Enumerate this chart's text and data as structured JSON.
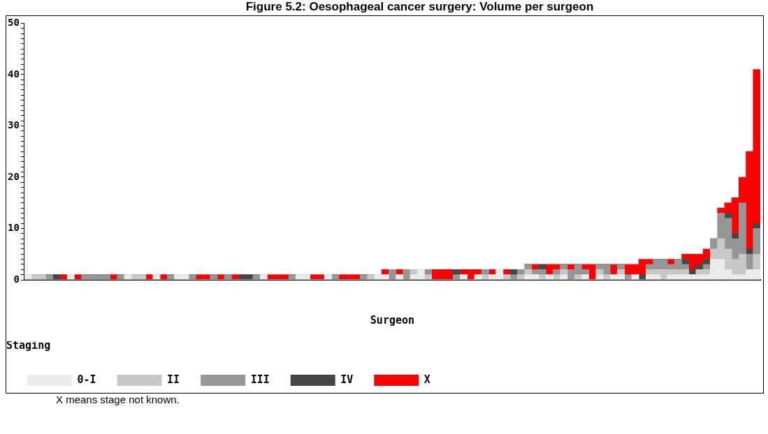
{
  "chart_data": {
    "type": "bar",
    "stacked": true,
    "title": "Figure 5.2: Oesophageal cancer surgery: Volume per surgeon",
    "xlabel": "Surgeon",
    "legend_title": "Staging",
    "legend": "bottom",
    "grid": false,
    "tick_labels": "y",
    "annotations": [
      "X means stage not known."
    ],
    "ylim": [
      0,
      50
    ],
    "yticks": [
      0,
      {
        "value": 1,
        "label": null
      },
      {
        "value": 2,
        "label": null
      },
      {
        "value": 3,
        "label": null
      },
      {
        "value": 4,
        "label": null
      },
      {
        "value": 5,
        "label": null
      },
      {
        "value": 6,
        "label": null
      },
      {
        "value": 7,
        "label": null
      },
      {
        "value": 8,
        "label": null
      },
      {
        "value": 9,
        "label": null
      },
      10,
      {
        "value": 11,
        "label": null
      },
      {
        "value": 12,
        "label": null
      },
      {
        "value": 13,
        "label": null
      },
      {
        "value": 14,
        "label": null
      },
      {
        "value": 15,
        "label": null
      },
      {
        "value": 16,
        "label": null
      },
      {
        "value": 17,
        "label": null
      },
      {
        "value": 18,
        "label": null
      },
      {
        "value": 19,
        "label": null
      },
      20,
      {
        "value": 21,
        "label": null
      },
      {
        "value": 22,
        "label": null
      },
      {
        "value": 23,
        "label": null
      },
      {
        "value": 24,
        "label": null
      },
      {
        "value": 25,
        "label": null
      },
      {
        "value": 26,
        "label": null
      },
      {
        "value": 27,
        "label": null
      },
      {
        "value": 28,
        "label": null
      },
      {
        "value": 29,
        "label": null
      },
      30,
      {
        "value": 31,
        "label": null
      },
      {
        "value": 32,
        "label": null
      },
      {
        "value": 33,
        "label": null
      },
      {
        "value": 34,
        "label": null
      },
      {
        "value": 35,
        "label": null
      },
      {
        "value": 36,
        "label": null
      },
      {
        "value": 37,
        "label": null
      },
      {
        "value": 38,
        "label": null
      },
      {
        "value": 39,
        "label": null
      },
      40,
      {
        "value": 41,
        "label": null
      },
      {
        "value": 42,
        "label": null
      },
      {
        "value": 43,
        "label": null
      },
      {
        "value": 44,
        "label": null
      },
      {
        "value": 45,
        "label": null
      },
      {
        "value": 46,
        "label": null
      },
      {
        "value": 47,
        "label": null
      },
      {
        "value": 48,
        "label": null
      },
      {
        "value": 49,
        "label": null
      },
      50
    ],
    "categories": [
      null,
      null,
      null,
      null,
      null,
      null,
      null,
      null,
      null,
      null,
      null,
      null,
      null,
      null,
      null,
      null,
      null,
      null,
      null,
      null,
      null,
      null,
      null,
      null,
      null,
      null,
      null,
      null,
      null,
      null,
      null,
      null,
      null,
      null,
      null,
      null,
      null,
      null,
      null,
      null,
      null,
      null,
      null,
      null,
      null,
      null,
      null,
      null,
      null,
      null,
      null,
      null,
      null,
      null,
      null,
      null,
      null,
      null,
      null,
      null,
      null,
      null,
      null,
      null,
      null,
      null,
      null,
      null,
      null,
      null,
      null,
      null,
      null,
      null,
      null,
      null,
      null,
      null,
      null,
      null,
      null,
      null,
      null,
      null,
      null,
      null,
      null,
      null,
      null,
      null,
      null,
      null,
      null,
      null,
      null,
      null,
      null,
      null,
      null,
      null,
      null,
      null,
      null
    ],
    "series": [
      {
        "name": "0-I",
        "color": "#ebebeb",
        "values": [
          1,
          0,
          0,
          0,
          0,
          0,
          1,
          0,
          0,
          0,
          0,
          0,
          0,
          0,
          1,
          0,
          0,
          0,
          1,
          0,
          0,
          1,
          1,
          0,
          0,
          0,
          0,
          0,
          0,
          0,
          0,
          0,
          0,
          1,
          0,
          0,
          0,
          0,
          1,
          1,
          0,
          0,
          1,
          0,
          0,
          0,
          0,
          0,
          0,
          1,
          1,
          0,
          1,
          0,
          1,
          2,
          0,
          0,
          0,
          0,
          0,
          1,
          0,
          1,
          0,
          1,
          2,
          0,
          0,
          0,
          1,
          1,
          0,
          1,
          0,
          1,
          0,
          0,
          1,
          0,
          1,
          0,
          1,
          1,
          0,
          1,
          0,
          1,
          1,
          0,
          1,
          1,
          1,
          1,
          1,
          1,
          4,
          4,
          2,
          1,
          1,
          2,
          2
        ]
      },
      {
        "name": "II",
        "color": "#c8c8c8",
        "values": [
          0,
          1,
          1,
          0,
          0,
          0,
          0,
          0,
          0,
          0,
          0,
          0,
          0,
          0,
          0,
          1,
          1,
          0,
          0,
          0,
          0,
          0,
          0,
          0,
          0,
          0,
          0,
          0,
          0,
          0,
          0,
          0,
          0,
          0,
          0,
          0,
          0,
          0,
          0,
          0,
          0,
          0,
          0,
          0,
          0,
          0,
          0,
          0,
          1,
          0,
          0,
          0,
          0,
          0,
          1,
          0,
          1,
          0,
          0,
          0,
          0,
          0,
          0,
          0,
          1,
          0,
          0,
          1,
          0,
          1,
          1,
          0,
          1,
          0,
          1,
          1,
          0,
          1,
          0,
          0,
          1,
          1,
          0,
          1,
          0,
          0,
          0,
          1,
          1,
          2,
          1,
          1,
          1,
          0,
          1,
          1,
          2,
          4,
          4,
          3,
          4,
          0,
          3
        ]
      },
      {
        "name": "III",
        "color": "#969696",
        "values": [
          0,
          0,
          0,
          1,
          0,
          0,
          0,
          0,
          1,
          1,
          1,
          1,
          0,
          1,
          0,
          0,
          0,
          0,
          0,
          0,
          1,
          0,
          0,
          1,
          0,
          0,
          1,
          0,
          1,
          0,
          0,
          0,
          1,
          0,
          0,
          0,
          0,
          1,
          0,
          0,
          0,
          0,
          0,
          1,
          0,
          0,
          0,
          1,
          0,
          0,
          0,
          2,
          0,
          2,
          0,
          0,
          1,
          0,
          0,
          0,
          1,
          0,
          0,
          0,
          1,
          0,
          0,
          0,
          1,
          1,
          1,
          1,
          1,
          0,
          1,
          1,
          2,
          2,
          1,
          0,
          1,
          2,
          0,
          1,
          1,
          0,
          0,
          1,
          2,
          2,
          1,
          2,
          1,
          0,
          0,
          1,
          2,
          5,
          6,
          4,
          10,
          3,
          5
        ]
      },
      {
        "name": "IV",
        "color": "#464646",
        "values": [
          0,
          0,
          0,
          0,
          1,
          0,
          0,
          0,
          0,
          0,
          0,
          0,
          0,
          0,
          0,
          0,
          0,
          0,
          0,
          0,
          0,
          0,
          0,
          0,
          0,
          0,
          0,
          0,
          0,
          0,
          1,
          1,
          0,
          0,
          0,
          0,
          0,
          0,
          0,
          0,
          0,
          0,
          0,
          0,
          0,
          0,
          0,
          0,
          0,
          0,
          0,
          0,
          0,
          0,
          0,
          0,
          0,
          0,
          0,
          0,
          1,
          0,
          0,
          0,
          0,
          0,
          0,
          0,
          1,
          0,
          0,
          0,
          1,
          0,
          0,
          0,
          0,
          0,
          0,
          0,
          0,
          0,
          0,
          0,
          0,
          0,
          1,
          0,
          0,
          0,
          0,
          0,
          1,
          1,
          1,
          1,
          0,
          0,
          1,
          1,
          0,
          1,
          1
        ]
      },
      {
        "name": "X",
        "color": "#ff0000",
        "values": [
          0,
          0,
          0,
          0,
          0,
          1,
          0,
          1,
          0,
          0,
          0,
          0,
          1,
          0,
          0,
          0,
          0,
          1,
          0,
          1,
          0,
          0,
          0,
          0,
          1,
          1,
          0,
          1,
          0,
          1,
          0,
          0,
          0,
          0,
          1,
          1,
          1,
          0,
          0,
          0,
          1,
          1,
          0,
          0,
          1,
          1,
          1,
          0,
          0,
          0,
          1,
          0,
          1,
          0,
          0,
          0,
          0,
          2,
          2,
          2,
          0,
          1,
          2,
          1,
          0,
          1,
          0,
          1,
          0,
          0,
          0,
          1,
          0,
          2,
          1,
          0,
          1,
          0,
          1,
          3,
          0,
          0,
          2,
          0,
          2,
          2,
          3,
          1,
          0,
          0,
          1,
          0,
          1,
          3,
          2,
          2,
          0,
          1,
          2,
          7,
          5,
          19,
          30
        ]
      }
    ]
  }
}
